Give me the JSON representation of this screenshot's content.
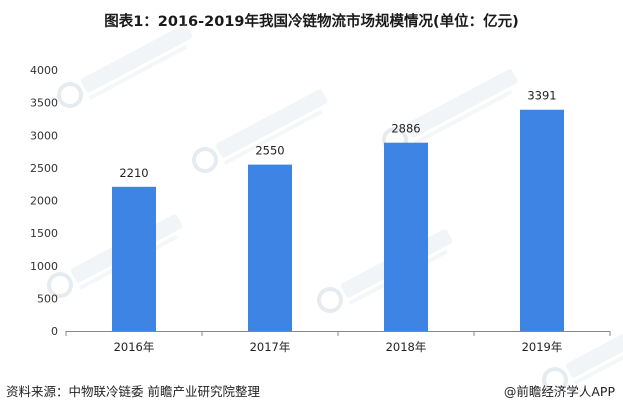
{
  "title": "图表1：2016-2019年我国冷链物流市场规模情况(单位：亿元)",
  "source": "资料来源：中物联冷链委 前瞻产业研究院整理",
  "app_credit": "@前瞻经济学人APP",
  "colors": {
    "bar": "#3d84e4",
    "axis": "#888888",
    "watermark": "#cfd8e3"
  },
  "chart_data": {
    "type": "bar",
    "title": "图表1：2016-2019年我国冷链物流市场规模情况(单位：亿元)",
    "categories": [
      "2016年",
      "2017年",
      "2018年",
      "2019年"
    ],
    "values": [
      2210,
      2550,
      2886,
      3391
    ],
    "data_labels": [
      "2210",
      "2550",
      "2886",
      "3391"
    ],
    "yticks": [
      "0",
      "500",
      "1000",
      "1500",
      "2000",
      "2500",
      "3000",
      "3500",
      "4000"
    ],
    "ylim": [
      0,
      4000
    ],
    "xlabel": "",
    "ylabel": "",
    "grid": false,
    "legend": false
  }
}
